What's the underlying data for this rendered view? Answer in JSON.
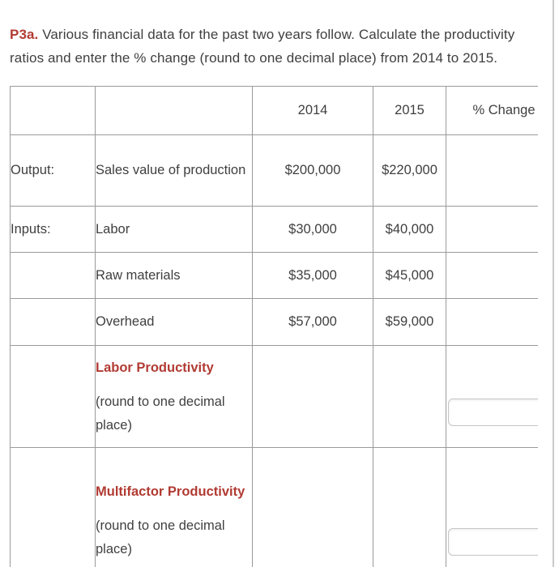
{
  "prompt": {
    "label": "P3a.",
    "text": "Various financial data for the past two years follow. Calculate the productivity ratios and enter the % change (round to one decimal place) from 2014 to 2015."
  },
  "table": {
    "headers": {
      "year_2014": "2014",
      "year_2015": "2015",
      "percent_change": "% Change"
    },
    "rows": [
      {
        "category": "Output:",
        "item": "Sales value of production",
        "y2014": "$200,000",
        "y2015": "$220,000",
        "pct_change": ""
      },
      {
        "category": "Inputs:",
        "item": "Labor",
        "y2014": "$30,000",
        "y2015": "$40,000",
        "pct_change": ""
      },
      {
        "category": "",
        "item": "Raw materials",
        "y2014": "$35,000",
        "y2015": "$45,000",
        "pct_change": ""
      },
      {
        "category": "",
        "item": "Overhead",
        "y2014": "$57,000",
        "y2015": "$59,000",
        "pct_change": ""
      }
    ],
    "answer_rows": [
      {
        "title": "Labor Productivity",
        "note": "(round to one decimal place)",
        "input_value": ""
      },
      {
        "title": "Multifactor Productivity",
        "note": "(round to one decimal place)",
        "input_value": ""
      }
    ]
  },
  "colors": {
    "accent_red": "#b13b33",
    "body_text": "#3f3f3f",
    "table_border": "#9a9a9a",
    "input_border": "#c6c6c6",
    "panel_rail": "#c9c9c9"
  }
}
